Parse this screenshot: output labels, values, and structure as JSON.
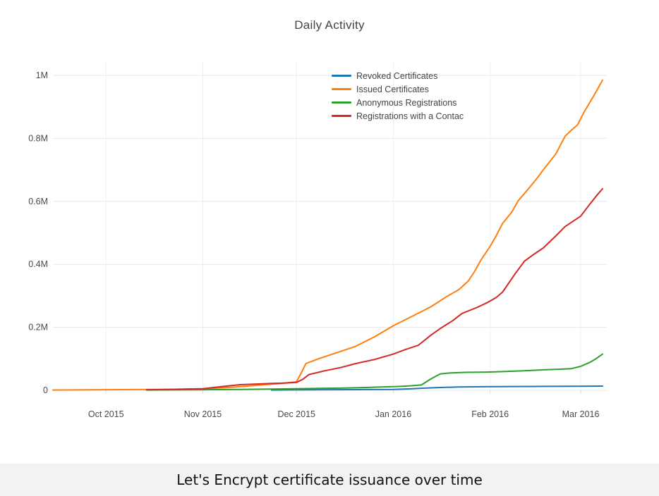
{
  "page": {
    "background": "#ffffff",
    "caption_bar_color": "#f2f2f2"
  },
  "caption": {
    "text": "Let's Encrypt certificate issuance over time"
  },
  "chart_data": {
    "type": "line",
    "title": "Daily Activity",
    "xlabel": "",
    "ylabel": "",
    "x_unit": "days since first data point (mid-Sep 2015)",
    "y_unit": "millions (cumulative count)",
    "ylim": [
      0,
      1.05
    ],
    "xlim": [
      0,
      177
    ],
    "grid": true,
    "legend_position": "top-center-inside",
    "x_ticks": [
      {
        "label": "Oct 2015",
        "day": 17
      },
      {
        "label": "Nov 2015",
        "day": 48
      },
      {
        "label": "Dec 2015",
        "day": 78
      },
      {
        "label": "Jan 2016",
        "day": 109
      },
      {
        "label": "Feb 2016",
        "day": 140
      },
      {
        "label": "Mar 2016",
        "day": 169
      }
    ],
    "y_ticks": [
      {
        "label": "0",
        "value": 0
      },
      {
        "label": "0.2M",
        "value": 0.2
      },
      {
        "label": "0.4M",
        "value": 0.4
      },
      {
        "label": "0.6M",
        "value": 0.6
      },
      {
        "label": "0.8M",
        "value": 0.8
      },
      {
        "label": "1M",
        "value": 1.0
      }
    ],
    "legend": [
      {
        "label": "Revoked Certificates",
        "color": "#1f77b4"
      },
      {
        "label": "Issued Certificates",
        "color": "#ff7f0e"
      },
      {
        "label": "Anonymous Registrations",
        "color": "#2ca02c"
      },
      {
        "label": "Registrations with a Contac",
        "color": "#d62728"
      }
    ],
    "series": [
      {
        "name": "Revoked Certificates",
        "color": "#1f77b4",
        "draw_order": 1,
        "points": [
          [
            70,
            0.001
          ],
          [
            80,
            0.0015
          ],
          [
            90,
            0.002
          ],
          [
            100,
            0.0025
          ],
          [
            109,
            0.003
          ],
          [
            114,
            0.0045
          ],
          [
            119,
            0.007
          ],
          [
            124,
            0.009
          ],
          [
            130,
            0.0105
          ],
          [
            138,
            0.0115
          ],
          [
            148,
            0.012
          ],
          [
            158,
            0.0125
          ],
          [
            168,
            0.013
          ],
          [
            176,
            0.0135
          ]
        ]
      },
      {
        "name": "Issued Certificates",
        "color": "#ff7f0e",
        "draw_order": 2,
        "points": [
          [
            0,
            0.001
          ],
          [
            17,
            0.002
          ],
          [
            33,
            0.003
          ],
          [
            48,
            0.005
          ],
          [
            58,
            0.01
          ],
          [
            66,
            0.016
          ],
          [
            73,
            0.022
          ],
          [
            78,
            0.027
          ],
          [
            79.5,
            0.055
          ],
          [
            81,
            0.085
          ],
          [
            85,
            0.1
          ],
          [
            91,
            0.12
          ],
          [
            97,
            0.14
          ],
          [
            103,
            0.17
          ],
          [
            109,
            0.205
          ],
          [
            115,
            0.235
          ],
          [
            121,
            0.265
          ],
          [
            126,
            0.297
          ],
          [
            130,
            0.32
          ],
          [
            133,
            0.347
          ],
          [
            135,
            0.377
          ],
          [
            137,
            0.413
          ],
          [
            140,
            0.457
          ],
          [
            142,
            0.492
          ],
          [
            144,
            0.53
          ],
          [
            147,
            0.567
          ],
          [
            149,
            0.602
          ],
          [
            152,
            0.637
          ],
          [
            155,
            0.673
          ],
          [
            157,
            0.7
          ],
          [
            161,
            0.75
          ],
          [
            164,
            0.807
          ],
          [
            166,
            0.826
          ],
          [
            168,
            0.843
          ],
          [
            170,
            0.882
          ],
          [
            173,
            0.932
          ],
          [
            176,
            0.985
          ]
        ]
      },
      {
        "name": "Anonymous Registrations",
        "color": "#2ca02c",
        "draw_order": 3,
        "points": [
          [
            30,
            0.001
          ],
          [
            48,
            0.002
          ],
          [
            60,
            0.003
          ],
          [
            70,
            0.004
          ],
          [
            78,
            0.005
          ],
          [
            85,
            0.006
          ],
          [
            92,
            0.007
          ],
          [
            100,
            0.009
          ],
          [
            106,
            0.011
          ],
          [
            110,
            0.012
          ],
          [
            114,
            0.014
          ],
          [
            118,
            0.017
          ],
          [
            121,
            0.036
          ],
          [
            124,
            0.052
          ],
          [
            127,
            0.055
          ],
          [
            132,
            0.057
          ],
          [
            139,
            0.058
          ],
          [
            145,
            0.06
          ],
          [
            151,
            0.062
          ],
          [
            157,
            0.065
          ],
          [
            162,
            0.067
          ],
          [
            166,
            0.069
          ],
          [
            169,
            0.076
          ],
          [
            172,
            0.089
          ],
          [
            174,
            0.101
          ],
          [
            176,
            0.115
          ]
        ]
      },
      {
        "name": "Registrations with a Contact",
        "color": "#d62728",
        "draw_order": 4,
        "points": [
          [
            30,
            0.002
          ],
          [
            40,
            0.003
          ],
          [
            48,
            0.005
          ],
          [
            55,
            0.013
          ],
          [
            60,
            0.018
          ],
          [
            68,
            0.021
          ],
          [
            74,
            0.023
          ],
          [
            78,
            0.025
          ],
          [
            80,
            0.035
          ],
          [
            82,
            0.05
          ],
          [
            87,
            0.062
          ],
          [
            92,
            0.072
          ],
          [
            97,
            0.085
          ],
          [
            103,
            0.098
          ],
          [
            109,
            0.115
          ],
          [
            113,
            0.13
          ],
          [
            117,
            0.143
          ],
          [
            121,
            0.175
          ],
          [
            124,
            0.196
          ],
          [
            128,
            0.221
          ],
          [
            131,
            0.244
          ],
          [
            136,
            0.264
          ],
          [
            139,
            0.278
          ],
          [
            142,
            0.295
          ],
          [
            144,
            0.312
          ],
          [
            148,
            0.37
          ],
          [
            151,
            0.41
          ],
          [
            154,
            0.432
          ],
          [
            157,
            0.452
          ],
          [
            161,
            0.49
          ],
          [
            164,
            0.52
          ],
          [
            169,
            0.553
          ],
          [
            172,
            0.592
          ],
          [
            174,
            0.617
          ],
          [
            176,
            0.64
          ]
        ]
      }
    ],
    "colors": {
      "grid_horizontal": "#e8e8e8",
      "grid_vertical": "#efefef",
      "tick_mark": "#d9d9d9",
      "axis_text": "#4a4a4a",
      "title_text": "#444444"
    }
  }
}
